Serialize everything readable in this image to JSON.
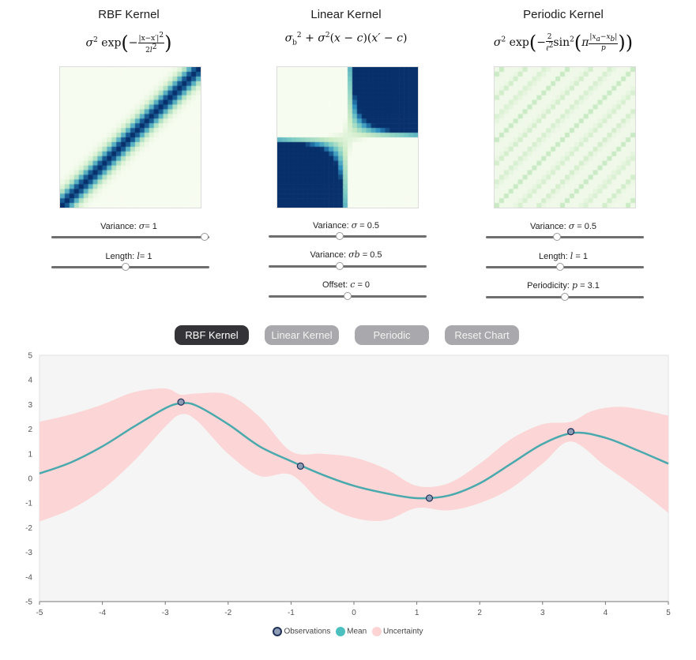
{
  "kernels": [
    {
      "title": "RBF Kernel",
      "colormap": "rbf",
      "sliders": [
        {
          "label": "Variance:",
          "symbol": "σ",
          "value_text": "= 1",
          "fraction": 0.97
        },
        {
          "label": "Length:",
          "symbol": "l",
          "value_text": "= 1",
          "fraction": 0.47
        }
      ]
    },
    {
      "title": "Linear Kernel",
      "colormap": "linear",
      "sliders": [
        {
          "label": "Variance:",
          "symbol": "σ",
          "value_text": " = 0.5",
          "fraction": 0.45
        },
        {
          "label": "Variance:",
          "symbol": "σb",
          "value_text": " = 0.5",
          "fraction": 0.45
        },
        {
          "label": "Offset:",
          "symbol": "c",
          "value_text": " = 0",
          "fraction": 0.5
        }
      ]
    },
    {
      "title": "Periodic Kernel",
      "colormap": "periodic",
      "sliders": [
        {
          "label": "Variance:",
          "symbol": "σ",
          "value_text": " = 0.5",
          "fraction": 0.45
        },
        {
          "label": "Length:",
          "symbol": "l",
          "value_text": " = 1",
          "fraction": 0.47
        },
        {
          "label": "Periodicity:",
          "symbol": "p",
          "value_text": " = 3.1",
          "fraction": 0.5
        }
      ]
    }
  ],
  "buttons": [
    {
      "label": "RBF Kernel",
      "active": true
    },
    {
      "label": "Linear Kernel",
      "active": false
    },
    {
      "label": "Periodic",
      "active": false
    },
    {
      "label": "Reset Chart",
      "active": false
    }
  ],
  "legend": {
    "observations": "Observations",
    "mean": "Mean",
    "uncertainty": "Uncertainty"
  },
  "colors": {
    "mean": "#4aa9ad",
    "uncertainty": "#fdd3d3",
    "observation_fill": "#8e9bb5",
    "observation_stroke": "#1f3157",
    "plot_bg": "#f5f5f5",
    "heat_dark": "#08306b",
    "heat_light": "#f7fcf0"
  },
  "chart_data": {
    "type": "line",
    "xlim": [
      -5,
      5
    ],
    "ylim": [
      -5,
      5
    ],
    "xticks": [
      -5,
      -4,
      -3,
      -2,
      -1,
      0,
      1,
      2,
      3,
      4,
      5
    ],
    "yticks": [
      5,
      4,
      3,
      2,
      1,
      0,
      -1,
      -2,
      -3,
      -4,
      -5
    ],
    "observations": [
      {
        "x": -2.75,
        "y": 3.1
      },
      {
        "x": -0.85,
        "y": 0.5
      },
      {
        "x": 1.2,
        "y": -0.8
      },
      {
        "x": 3.45,
        "y": 1.9
      }
    ],
    "mean": [
      {
        "x": -5,
        "y": 0.2
      },
      {
        "x": -4.5,
        "y": 0.65
      },
      {
        "x": -4,
        "y": 1.3
      },
      {
        "x": -3.5,
        "y": 2.1
      },
      {
        "x": -3,
        "y": 2.85
      },
      {
        "x": -2.75,
        "y": 3.05
      },
      {
        "x": -2.5,
        "y": 2.95
      },
      {
        "x": -2,
        "y": 2.2
      },
      {
        "x": -1.5,
        "y": 1.3
      },
      {
        "x": -1,
        "y": 0.7
      },
      {
        "x": -0.5,
        "y": 0.15
      },
      {
        "x": 0,
        "y": -0.3
      },
      {
        "x": 0.5,
        "y": -0.6
      },
      {
        "x": 1,
        "y": -0.8
      },
      {
        "x": 1.5,
        "y": -0.7
      },
      {
        "x": 2,
        "y": -0.2
      },
      {
        "x": 2.5,
        "y": 0.6
      },
      {
        "x": 3,
        "y": 1.4
      },
      {
        "x": 3.5,
        "y": 1.85
      },
      {
        "x": 4,
        "y": 1.65
      },
      {
        "x": 4.5,
        "y": 1.15
      },
      {
        "x": 5,
        "y": 0.6
      }
    ],
    "upper": [
      {
        "x": -5,
        "y": 2.3
      },
      {
        "x": -4.5,
        "y": 2.6
      },
      {
        "x": -4,
        "y": 3.0
      },
      {
        "x": -3.5,
        "y": 3.5
      },
      {
        "x": -3,
        "y": 3.65
      },
      {
        "x": -2.75,
        "y": 3.4
      },
      {
        "x": -2.5,
        "y": 3.45
      },
      {
        "x": -2,
        "y": 3.4
      },
      {
        "x": -1.5,
        "y": 2.5
      },
      {
        "x": -1,
        "y": 1.1
      },
      {
        "x": -0.5,
        "y": 1.0
      },
      {
        "x": 0,
        "y": 0.85
      },
      {
        "x": 0.5,
        "y": 0.4
      },
      {
        "x": 1,
        "y": -0.3
      },
      {
        "x": 1.5,
        "y": -0.2
      },
      {
        "x": 2,
        "y": 0.6
      },
      {
        "x": 2.5,
        "y": 1.6
      },
      {
        "x": 3,
        "y": 2.2
      },
      {
        "x": 3.45,
        "y": 2.3
      },
      {
        "x": 3.8,
        "y": 2.75
      },
      {
        "x": 4.3,
        "y": 2.9
      },
      {
        "x": 5,
        "y": 2.55
      }
    ],
    "lower": [
      {
        "x": -5,
        "y": -1.75
      },
      {
        "x": -4.5,
        "y": -1.25
      },
      {
        "x": -4,
        "y": -0.45
      },
      {
        "x": -3.5,
        "y": 0.7
      },
      {
        "x": -3,
        "y": 2.1
      },
      {
        "x": -2.75,
        "y": 2.6
      },
      {
        "x": -2.5,
        "y": 2.35
      },
      {
        "x": -2,
        "y": 1.0
      },
      {
        "x": -1.5,
        "y": 0.1
      },
      {
        "x": -1,
        "y": 0.15
      },
      {
        "x": -0.5,
        "y": -1.0
      },
      {
        "x": 0,
        "y": -1.6
      },
      {
        "x": 0.5,
        "y": -1.7
      },
      {
        "x": 1,
        "y": -1.2
      },
      {
        "x": 1.5,
        "y": -1.3
      },
      {
        "x": 2,
        "y": -1.0
      },
      {
        "x": 2.5,
        "y": -0.4
      },
      {
        "x": 3,
        "y": 0.6
      },
      {
        "x": 3.45,
        "y": 1.5
      },
      {
        "x": 4,
        "y": 0.5
      },
      {
        "x": 4.5,
        "y": -0.4
      },
      {
        "x": 5,
        "y": -1.4
      }
    ]
  }
}
